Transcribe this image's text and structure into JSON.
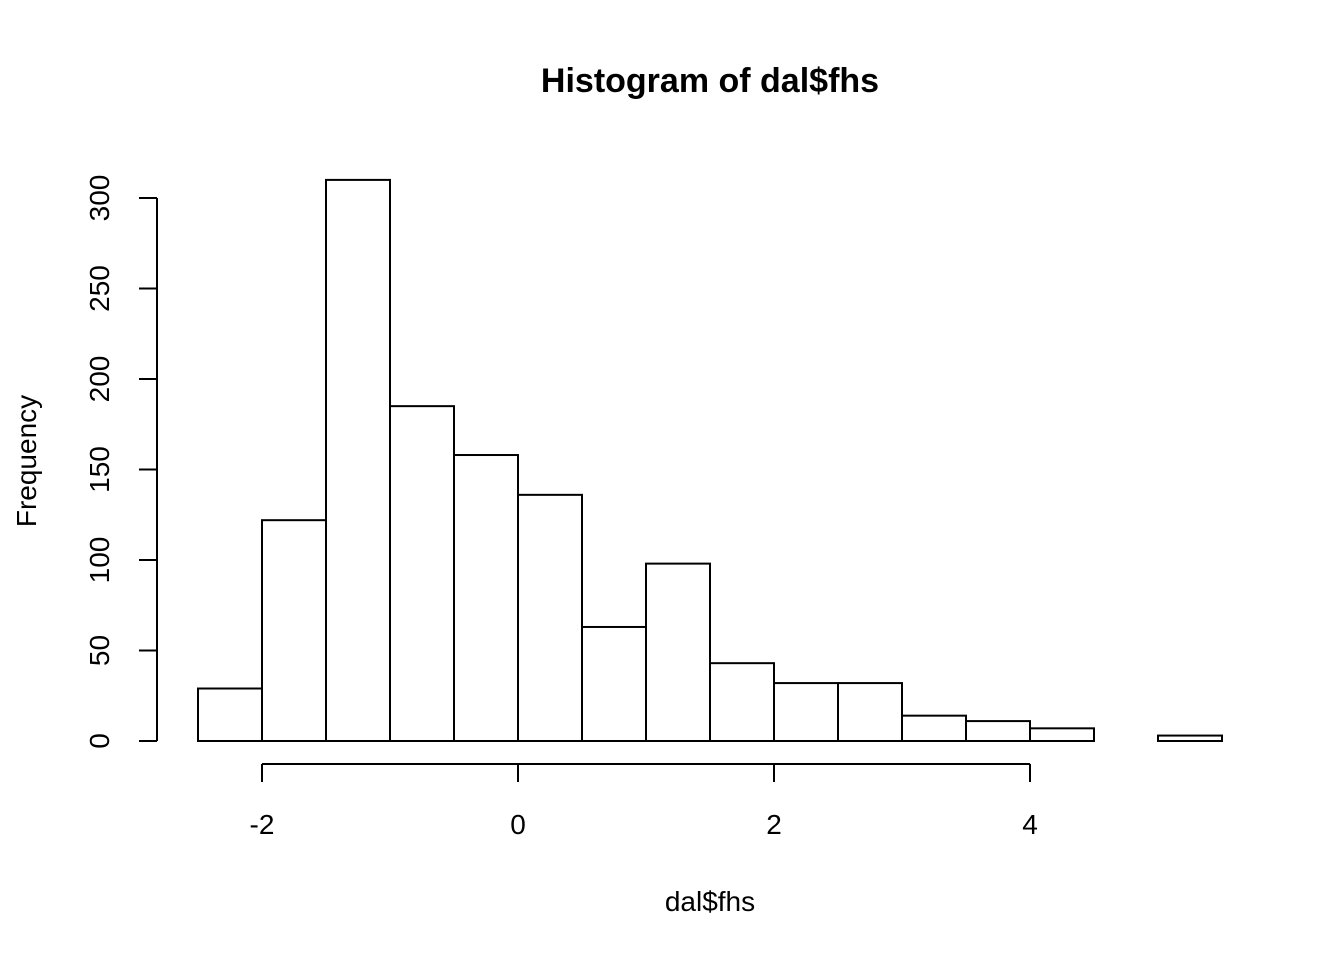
{
  "chart_data": {
    "type": "bar",
    "title": "Histogram of dal$fhs",
    "xlabel": "dal$fhs",
    "ylabel": "Frequency",
    "bin_edges": [
      -2.5,
      -2,
      -1.5,
      -1,
      -0.5,
      0,
      0.5,
      1,
      1.5,
      2,
      2.5,
      3,
      3.5,
      4,
      4.5,
      5,
      5.5
    ],
    "values": [
      29,
      122,
      310,
      185,
      158,
      136,
      63,
      98,
      43,
      32,
      32,
      14,
      11,
      7,
      0,
      3
    ],
    "x_ticks": [
      "-2",
      "0",
      "2",
      "4"
    ],
    "y_ticks": [
      "0",
      "50",
      "100",
      "150",
      "200",
      "250",
      "300"
    ],
    "xlim": [
      -2.5,
      5.5
    ],
    "ylim": [
      0,
      310
    ],
    "bar_fill": "#ffffff",
    "bar_stroke": "#000000",
    "grid": false,
    "legend": "none"
  }
}
